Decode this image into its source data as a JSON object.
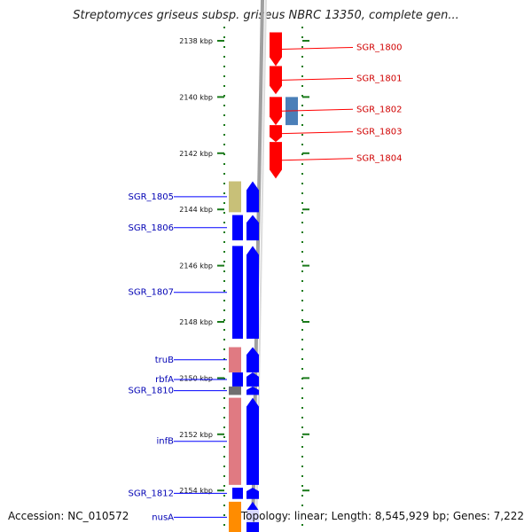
{
  "title": "Streptomyces griseus subsp. griseus NBRC 13350, complete gen...",
  "colors": {
    "forward_gene": "#ff0000",
    "reverse_gene": "#0000ff",
    "pseudo_olive": "#c8c078",
    "steel_blue": "#4a7fb8",
    "pink_gene": "#e07a82",
    "gray_gene": "#707070",
    "orange_gene": "#ff8c00",
    "tick_green": "#1a7a1a",
    "backbone": "#a0a0a0"
  },
  "axis": {
    "unit": "kbp",
    "ticks": [
      {
        "kbp": 2138,
        "label": "2138 kbp"
      },
      {
        "kbp": 2140,
        "label": "2140 kbp"
      },
      {
        "kbp": 2142,
        "label": "2142 kbp"
      },
      {
        "kbp": 2144,
        "label": "2144 kbp"
      },
      {
        "kbp": 2146,
        "label": "2146 kbp"
      },
      {
        "kbp": 2148,
        "label": "2148 kbp"
      },
      {
        "kbp": 2150,
        "label": "2150 kbp"
      },
      {
        "kbp": 2152,
        "label": "2152 kbp"
      },
      {
        "kbp": 2154,
        "label": "2154 kbp"
      }
    ]
  },
  "genes_right": [
    {
      "name": "SGR_1800",
      "start_kbp": 2137.7,
      "end_kbp": 2138.9,
      "color": "forward_gene"
    },
    {
      "name": "SGR_1801",
      "start_kbp": 2138.9,
      "end_kbp": 2139.9,
      "color": "forward_gene"
    },
    {
      "name": "SGR_1802",
      "start_kbp": 2140.0,
      "end_kbp": 2141.0,
      "color": "forward_gene"
    },
    {
      "name": "SGR_1803",
      "start_kbp": 2141.0,
      "end_kbp": 2141.6,
      "color": "forward_gene"
    },
    {
      "name": "SGR_1804",
      "start_kbp": 2141.6,
      "end_kbp": 2142.9,
      "color": "forward_gene"
    }
  ],
  "genes_right_extra": [
    {
      "start_kbp": 2140.0,
      "end_kbp": 2141.0,
      "color": "steel_blue"
    }
  ],
  "genes_left": [
    {
      "name": "SGR_1805",
      "start_kbp": 2143.0,
      "end_kbp": 2144.1,
      "color": "pseudo_olive"
    },
    {
      "name": "SGR_1806",
      "start_kbp": 2144.2,
      "end_kbp": 2145.1,
      "color": "reverse_gene"
    },
    {
      "name": "SGR_1807",
      "start_kbp": 2145.3,
      "end_kbp": 2148.6,
      "color": "reverse_gene"
    },
    {
      "name": "truB",
      "start_kbp": 2148.9,
      "end_kbp": 2149.8,
      "color": "pink_gene"
    },
    {
      "name": "rbfA",
      "start_kbp": 2149.8,
      "end_kbp": 2150.3,
      "color": "reverse_gene"
    },
    {
      "name": "SGR_1810",
      "start_kbp": 2150.3,
      "end_kbp": 2150.6,
      "color": "gray_gene"
    },
    {
      "name": "infB",
      "start_kbp": 2150.7,
      "end_kbp": 2153.8,
      "color": "pink_gene"
    },
    {
      "name": "SGR_1812",
      "start_kbp": 2153.9,
      "end_kbp": 2154.3,
      "color": "reverse_gene"
    },
    {
      "name": "nusA",
      "start_kbp": 2154.4,
      "end_kbp": 2155.5,
      "color": "orange_gene"
    }
  ],
  "footer": {
    "accession": "Accession: NC_010572",
    "topology": "Topology: linear; Length: 8,545,929 bp; Genes: 7,222"
  }
}
